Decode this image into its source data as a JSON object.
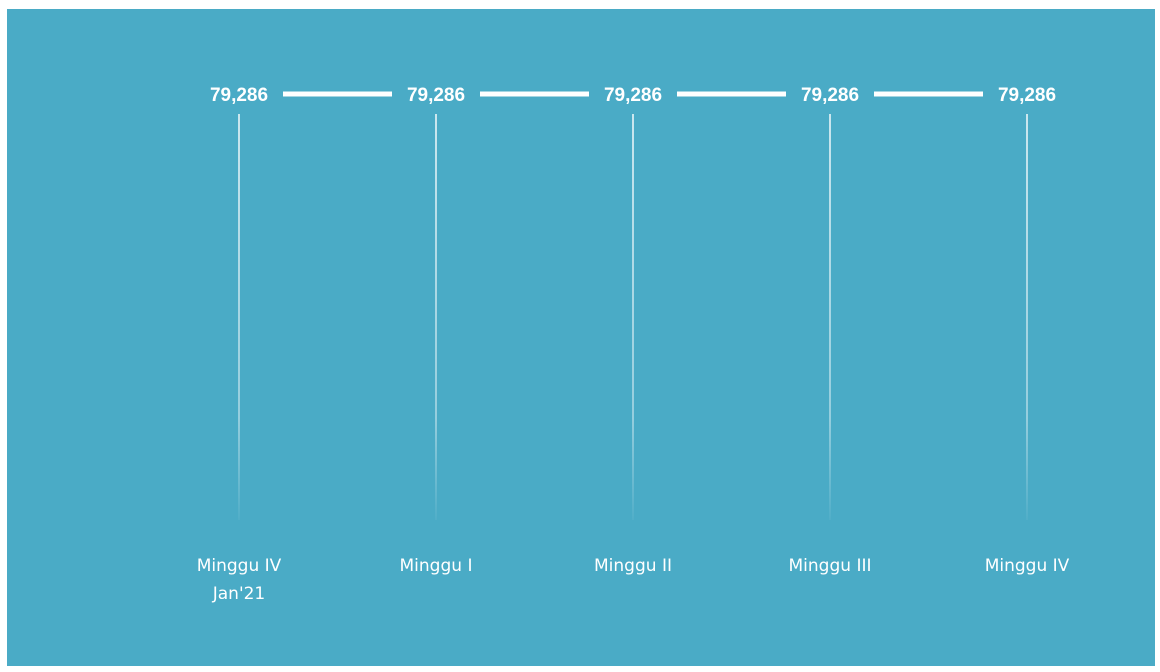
{
  "chart_data": {
    "type": "line",
    "categories": [
      [
        "Minggu IV",
        "Jan'21"
      ],
      [
        "Minggu I"
      ],
      [
        "Minggu II"
      ],
      [
        "Minggu III"
      ],
      [
        "Minggu IV"
      ]
    ],
    "series": [
      {
        "values": [
          79286,
          79286,
          79286,
          79286,
          79286
        ],
        "labels": [
          "79,286",
          "79,286",
          "79,286",
          "79,286",
          "79,286"
        ]
      }
    ],
    "grid": false,
    "drop_lines": true
  },
  "colors": {
    "background": "#4aabc6",
    "line": "#ffffff",
    "text": "#ffffff"
  }
}
